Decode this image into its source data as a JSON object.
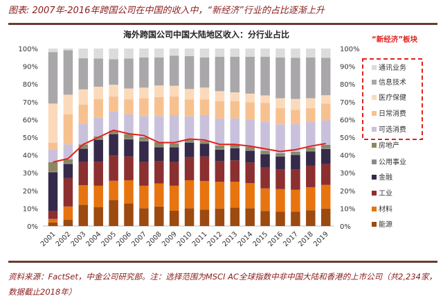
{
  "title": "图表: 2007年-2016年跨国公司在中国的收入中，“新经济”行业的占比逐渐上升",
  "source": "资料来源：FactSet，中金公司研究部。注：选择范围为MSCI AC全球指数中非中国大陆和香港的上市公司（共2,234家，数据截止2018年）",
  "chart_data": {
    "type": "bar",
    "stacked": true,
    "title": "海外跨国公司中国大陆地区收入：分行业占比",
    "annotation": "“新经济”板块",
    "ylim": [
      0,
      100
    ],
    "yticks": [
      "0%",
      "10%",
      "20%",
      "30%",
      "40%",
      "50%",
      "60%",
      "70%",
      "80%",
      "90%",
      "100%"
    ],
    "grid": false,
    "legend_position": "right",
    "categories": [
      "2001",
      "2002",
      "2003",
      "2004",
      "2005",
      "2006",
      "2007",
      "2008",
      "2009",
      "2010",
      "2011",
      "2012",
      "2013",
      "2014",
      "2015",
      "2016",
      "2017",
      "2018",
      "2019"
    ],
    "series": [
      {
        "name": "能源",
        "color": "#9c4a10",
        "values": [
          2,
          3.5,
          12,
          10.7,
          14.7,
          12.8,
          10,
          11,
          8.6,
          10,
          9.2,
          9.8,
          10.4,
          10,
          8.5,
          8,
          8,
          8.9,
          9.8
        ]
      },
      {
        "name": "材料",
        "color": "#e8740f",
        "values": [
          2,
          7.5,
          11,
          12,
          10.8,
          13,
          12.7,
          13,
          14.1,
          15.8,
          16.2,
          15.1,
          14.6,
          14.2,
          12.7,
          12.8,
          12.4,
          13,
          13.4
        ]
      },
      {
        "name": "工业",
        "color": "#8c2f30",
        "values": [
          4.6,
          16,
          13,
          13.6,
          14.3,
          13.4,
          13.3,
          12.7,
          13.3,
          13,
          13.8,
          11.7,
          12,
          11.6,
          12,
          11.2,
          11.6,
          12.1,
          11.7
        ]
      },
      {
        "name": "金融",
        "color": "#352a4a",
        "values": [
          21.7,
          8,
          7.6,
          12.3,
          12,
          9.6,
          11.7,
          7.7,
          8.4,
          8.2,
          7.2,
          6.4,
          6.8,
          6.6,
          7.3,
          7.2,
          8.1,
          8,
          8.5
        ]
      },
      {
        "name": "公用事业",
        "color": "#8a8a8a",
        "values": [
          0.5,
          0.5,
          0.5,
          0.5,
          0.5,
          0.5,
          0.5,
          0.5,
          0.5,
          0.5,
          0.5,
          0.5,
          0.5,
          0.5,
          0.5,
          0.5,
          0.5,
          0.5,
          0.5
        ]
      },
      {
        "name": "房地产",
        "color": "#8d8761",
        "values": [
          5.2,
          2,
          1.9,
          1.4,
          1.5,
          2.5,
          1.8,
          2.4,
          1.7,
          1.1,
          1.1,
          1.8,
          1.5,
          1.8,
          1.4,
          1.3,
          1.2,
          1.8,
          1.8
        ]
      },
      {
        "name": "可选消费",
        "color": "#c9c1dc",
        "values": [
          7,
          8.5,
          11.7,
          10.5,
          10.7,
          11.2,
          12,
          14.7,
          15.9,
          13.2,
          14.5,
          15.2,
          14.9,
          15.3,
          16.3,
          16.3,
          15.6,
          14.3,
          13.9
        ]
      },
      {
        "name": "日常消费",
        "color": "#f7c18f",
        "values": [
          4,
          17,
          10.8,
          10.6,
          8.5,
          8.4,
          10,
          10.7,
          10.5,
          9.6,
          8.9,
          9.8,
          9.6,
          9.7,
          10.7,
          9.1,
          8.1,
          7.9,
          9.4
        ]
      },
      {
        "name": "医疗保健",
        "color": "#fbdabb",
        "values": [
          22,
          11,
          8.5,
          6.9,
          6.6,
          6.1,
          6,
          6.5,
          6,
          5.8,
          6.6,
          5.7,
          5,
          4.9,
          4.2,
          5.6,
          6.1,
          5.5,
          4.7
        ]
      },
      {
        "name": "信息技术",
        "color": "#a9a7a9",
        "values": [
          29,
          25,
          17.5,
          15.9,
          14.4,
          16.9,
          17,
          15.8,
          17,
          18.5,
          17,
          19.4,
          20.1,
          20.8,
          21.8,
          23,
          23.2,
          23,
          21.1
        ]
      },
      {
        "name": "通讯业务",
        "color": "#dcdcdc",
        "values": [
          2,
          1,
          5.5,
          5.6,
          6,
          5.6,
          5,
          5,
          4,
          4.3,
          5,
          4.6,
          4.6,
          4.6,
          4.6,
          5,
          5.2,
          5,
          5.2
        ]
      }
    ],
    "line": {
      "color": "#e0201c",
      "values": [
        36,
        38,
        46,
        50,
        54,
        52,
        51,
        47,
        47,
        49,
        48.5,
        46,
        46,
        45,
        43.5,
        42,
        43,
        45,
        46.5
      ]
    },
    "new_economy_series": [
      "通讯业务",
      "信息技术",
      "医疗保健",
      "日常消费",
      "可选消费"
    ]
  }
}
